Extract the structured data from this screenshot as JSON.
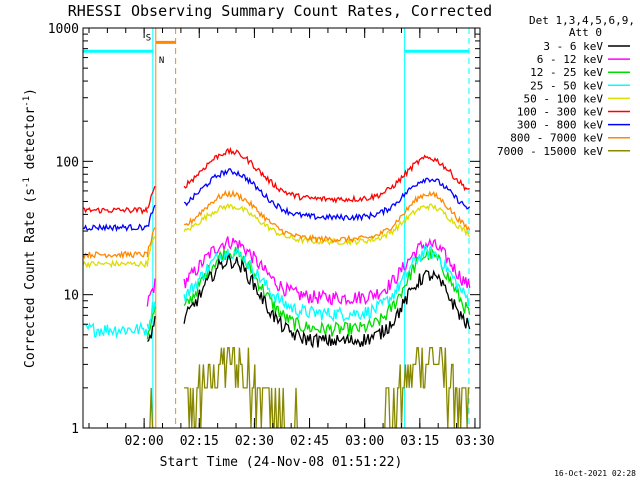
{
  "chart_data": {
    "type": "line",
    "title": "RHESSI Observing Summary Count Rates, Corrected",
    "xlabel": "Start Time (24-Nov-08 01:51:22)",
    "ylabel_main": "Corrected Count Rate (s",
    "ylabel_sup1": "-1",
    "ylabel_mid": " detector",
    "ylabel_sup2": "-1",
    "ylabel_end": ")",
    "yscale": "log",
    "ylim": [
      1,
      1000
    ],
    "xlim_minutes": [
      -8,
      100
    ],
    "y_ticks": [
      {
        "value": 1,
        "label": "1"
      },
      {
        "value": 10,
        "label": "10"
      },
      {
        "value": 100,
        "label": "100"
      },
      {
        "value": 1000,
        "label": "1000"
      }
    ],
    "x_ticks": [
      {
        "value": 8.63,
        "label": "02:00"
      },
      {
        "value": 23.63,
        "label": "02:15"
      },
      {
        "value": 38.63,
        "label": "02:30"
      },
      {
        "value": 53.63,
        "label": "02:45"
      },
      {
        "value": 68.63,
        "label": "03:00"
      },
      {
        "value": 83.63,
        "label": "03:15"
      },
      {
        "value": 98.63,
        "label": "03:30"
      }
    ],
    "legend_header": [
      "Det 1,3,4,5,6,9,",
      "Att 0"
    ],
    "series": [
      {
        "name": "3 - 6 keV",
        "color": "#000000",
        "pre": null,
        "base": 4.5,
        "peak1": 18,
        "peak2": 14
      },
      {
        "name": "6 - 12 keV",
        "color": "#ff00ff",
        "pre": null,
        "base": 9.5,
        "peak1": 25,
        "peak2": 24
      },
      {
        "name": "12 - 25 keV",
        "color": "#00dd00",
        "pre": null,
        "base": 5.5,
        "peak1": 21,
        "peak2": 20
      },
      {
        "name": "25 - 50 keV",
        "color": "#00ffff",
        "pre": 5.5,
        "base": 7.2,
        "peak1": 21,
        "peak2": 21
      },
      {
        "name": "50 - 100 keV",
        "color": "#dddd00",
        "pre": 17,
        "base": 25,
        "peak1": 46,
        "peak2": 46
      },
      {
        "name": "100 - 300 keV",
        "color": "#ff0000",
        "pre": 43,
        "base": 52,
        "peak1": 118,
        "peak2": 106
      },
      {
        "name": "300 - 800 keV",
        "color": "#0000ff",
        "pre": 32,
        "base": 38,
        "peak1": 84,
        "peak2": 74
      },
      {
        "name": "800 - 7000 keV",
        "color": "#ff8800",
        "pre": 20,
        "base": 26,
        "peak1": 57,
        "peak2": 57
      },
      {
        "name": "7000 - 15000 keV",
        "color": "#888800",
        "pre": null,
        "base": 1.0,
        "peak1": 3.2,
        "peak2": 3.5
      }
    ],
    "flags": [
      {
        "label": "S",
        "color": "#ff8800",
        "start": 11.8,
        "end": 17.2,
        "level": 780
      },
      {
        "label": "N",
        "color": "#00ffff",
        "start": -8,
        "end": 11.0,
        "level": 670
      },
      {
        "label": "",
        "color": "#00ffff",
        "start": 79.5,
        "end": 97.0,
        "level": 670
      }
    ],
    "vlines": [
      {
        "x": 11.0,
        "color": "#00ffff",
        "style": "solid"
      },
      {
        "x": 11.8,
        "color": "#ff8800",
        "style": "solid"
      },
      {
        "x": 17.2,
        "color": "#ff8800",
        "style": "dashed"
      },
      {
        "x": 79.5,
        "color": "#00ffff",
        "style": "solid"
      },
      {
        "x": 97.0,
        "color": "#00ffff",
        "style": "dashed"
      }
    ],
    "data_gap_minutes": [
      11.8,
      19.5
    ],
    "timestamp": "16-Oct-2021 02:28"
  }
}
